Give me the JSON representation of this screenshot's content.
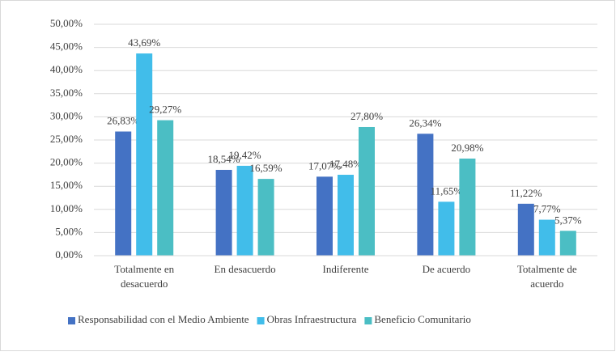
{
  "chart_data": {
    "type": "bar",
    "categories": [
      "Totalmente en desacuerdo",
      "En desacuerdo",
      "Indiferente",
      "De acuerdo",
      "Totalmente de acuerdo"
    ],
    "series": [
      {
        "name": "Responsabilidad con el Medio Ambiente",
        "color": "#4472c4",
        "values": [
          26.83,
          18.54,
          17.07,
          26.34,
          11.22
        ],
        "value_labels": [
          "26,83%",
          "18,54%",
          "17,07%",
          "26,34%",
          "11,22%"
        ]
      },
      {
        "name": "Obras Infraestructura",
        "color": "#41bdea",
        "values": [
          43.69,
          19.42,
          17.48,
          11.65,
          7.77
        ],
        "value_labels": [
          "43,69%",
          "19,42%",
          "17,48%",
          "11,65%",
          "7,77%"
        ]
      },
      {
        "name": "Beneficio Comunitario",
        "color": "#4bbec4",
        "values": [
          29.27,
          16.59,
          27.8,
          20.98,
          5.37
        ],
        "value_labels": [
          "29,27%",
          "16,59%",
          "27,80%",
          "20,98%",
          "5,37%"
        ]
      }
    ],
    "ylim": [
      0,
      50
    ],
    "yticks": [
      {
        "value": 0,
        "label": "0,00%"
      },
      {
        "value": 5,
        "label": "5,00%"
      },
      {
        "value": 10,
        "label": "10,00%"
      },
      {
        "value": 15,
        "label": "15,00%"
      },
      {
        "value": 20,
        "label": "20,00%"
      },
      {
        "value": 25,
        "label": "25,00%"
      },
      {
        "value": 30,
        "label": "30,00%"
      },
      {
        "value": 35,
        "label": "35,00%"
      },
      {
        "value": 40,
        "label": "40,00%"
      },
      {
        "value": 45,
        "label": "45,00%"
      },
      {
        "value": 50,
        "label": "50,00%"
      }
    ],
    "grid": true,
    "legend": "bottom"
  }
}
